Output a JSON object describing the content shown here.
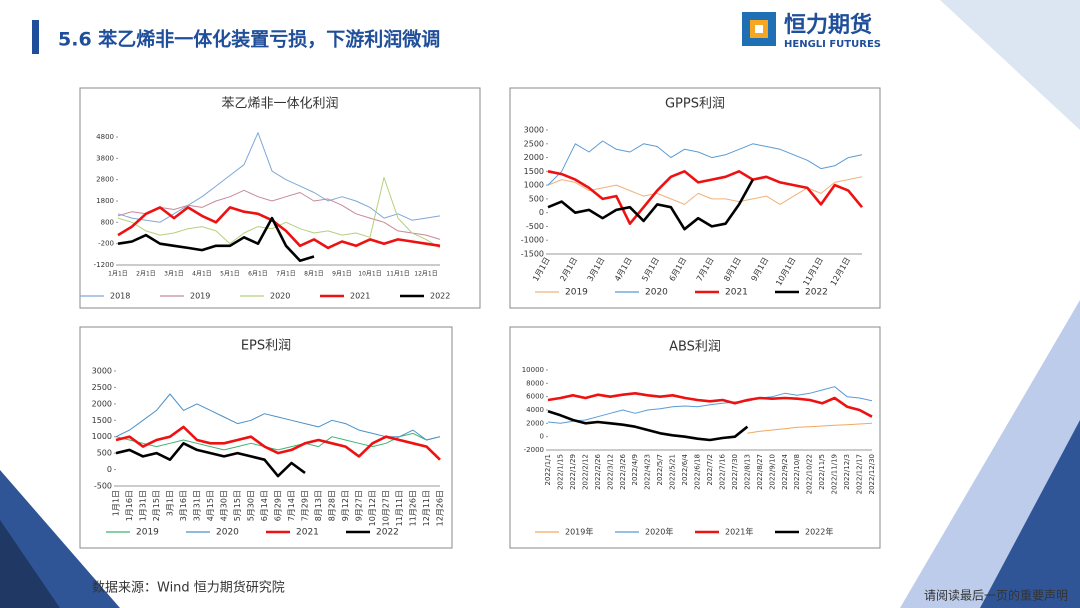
{
  "header": {
    "title": "5.6 苯乙烯非一体化装置亏损，下游利润微调",
    "logo": "恒力期货",
    "logo_en": "HENGLI FUTURES"
  },
  "footer": {
    "source": "数据来源：Wind  恒力期货研究院",
    "notice": "请阅读最后一页的重要声明"
  },
  "chart_data": [
    {
      "type": "line",
      "title": "苯乙烯非一体化利润",
      "categories": [
        "1月1日",
        null,
        "2月1日",
        null,
        "3月1日",
        null,
        "4月1日",
        null,
        "5月1日",
        null,
        "6月1日",
        null,
        "7月1日",
        null,
        "8月1日",
        null,
        "9月1日",
        null,
        "10月1日",
        null,
        "11月1日",
        null,
        "12月1日",
        null
      ],
      "series": [
        {
          "name": "2018",
          "color": "#7fa7d9",
          "values": [
            1200,
            1000,
            900,
            800,
            1200,
            1600,
            2000,
            2500,
            3000,
            3500,
            5000,
            3200,
            2800,
            2500,
            2200,
            1800,
            2000,
            1800,
            1500,
            1000,
            1200,
            900,
            1000,
            1100
          ]
        },
        {
          "name": "2019",
          "color": "#c48a9a",
          "values": [
            1100,
            1300,
            1200,
            1500,
            1400,
            1600,
            1500,
            1800,
            2000,
            2300,
            2000,
            1800,
            2000,
            2200,
            1800,
            1900,
            1600,
            1200,
            1000,
            800,
            400,
            300,
            200,
            0
          ]
        },
        {
          "name": "2020",
          "color": "#b5cf7f",
          "values": [
            1000,
            800,
            400,
            200,
            300,
            500,
            600,
            400,
            -200,
            300,
            600,
            500,
            800,
            500,
            300,
            400,
            200,
            300,
            100,
            2900,
            1000,
            300,
            0,
            -400
          ]
        },
        {
          "name": "2021",
          "color": "#ee1111",
          "values": [
            200,
            600,
            1200,
            1500,
            1000,
            1500,
            1100,
            800,
            1500,
            1300,
            1200,
            900,
            400,
            -300,
            0,
            -400,
            -100,
            -300,
            0,
            -200,
            0,
            -100,
            -200,
            -300
          ]
        },
        {
          "name": "2022",
          "color": "#000000",
          "values": [
            -200,
            -100,
            200,
            -200,
            -300,
            -400,
            -500,
            -300,
            -300,
            100,
            -200,
            1000,
            -300,
            -1000,
            -800,
            null,
            null,
            null,
            null,
            null,
            null,
            null,
            null,
            null
          ]
        }
      ],
      "ylim": [
        -1200,
        4800
      ],
      "yticks": [
        -1200,
        -200,
        800,
        1800,
        2800,
        3800,
        4800
      ],
      "legend": "bottom"
    },
    {
      "type": "line",
      "title": "GPPS利润",
      "categories": [
        "1月1日",
        null,
        "2月1日",
        null,
        "3月1日",
        null,
        "4月1日",
        null,
        "5月1日",
        null,
        "6月1日",
        null,
        "7月1日",
        null,
        "8月1日",
        null,
        "9月1日",
        null,
        "10月1日",
        null,
        "11月1日",
        null,
        "12月1日",
        null
      ],
      "series": [
        {
          "name": "2019",
          "color": "#f0b27a",
          "values": [
            1000,
            1200,
            1100,
            800,
            900,
            1000,
            800,
            600,
            700,
            500,
            300,
            700,
            500,
            500,
            400,
            500,
            600,
            300,
            600,
            900,
            700,
            1100,
            1200,
            1300
          ]
        },
        {
          "name": "2020",
          "color": "#5b9bd5",
          "values": [
            1000,
            1500,
            2500,
            2200,
            2600,
            2300,
            2200,
            2500,
            2400,
            2000,
            2300,
            2200,
            2000,
            2100,
            2300,
            2500,
            2400,
            2300,
            2100,
            1900,
            1600,
            1700,
            2000,
            2100
          ]
        },
        {
          "name": "2021",
          "color": "#ee1111",
          "values": [
            1500,
            1400,
            1200,
            900,
            500,
            600,
            -400,
            200,
            800,
            1300,
            1500,
            1100,
            1200,
            1300,
            1500,
            1200,
            1300,
            1100,
            1000,
            900,
            300,
            1000,
            800,
            200
          ]
        },
        {
          "name": "2022",
          "color": "#000000",
          "values": [
            200,
            400,
            0,
            100,
            -200,
            100,
            200,
            -300,
            300,
            200,
            -600,
            -200,
            -500,
            -400,
            300,
            1200,
            null,
            null,
            null,
            null,
            null,
            null,
            null,
            null
          ]
        }
      ],
      "ylim": [
        -1500,
        3000
      ],
      "yticks": [
        -1500,
        -1000,
        -500,
        0,
        500,
        1000,
        1500,
        2000,
        2500,
        3000
      ],
      "legend": "bottom"
    },
    {
      "type": "line",
      "title": "EPS利润",
      "categories": [
        "1月1日",
        "1月16日",
        "1月31日",
        "2月15日",
        "3月1日",
        "3月16日",
        "3月31日",
        "4月15日",
        "4月30日",
        "5月15日",
        "5月30日",
        "6月14日",
        "6月29日",
        "7月14日",
        "7月29日",
        "8月13日",
        "8月28日",
        "9月12日",
        "9月27日",
        "10月12日",
        "10月27日",
        "11月11日",
        "11月26日",
        "12月11日",
        "12月26日"
      ],
      "series": [
        {
          "name": "2019",
          "color": "#3cb371",
          "values": [
            1000,
            900,
            800,
            700,
            800,
            900,
            800,
            700,
            600,
            700,
            800,
            700,
            600,
            700,
            800,
            700,
            1000,
            900,
            800,
            700,
            800,
            1000,
            1100,
            900,
            1000
          ]
        },
        {
          "name": "2020",
          "color": "#4a90c8",
          "values": [
            1000,
            1200,
            1500,
            1800,
            2300,
            1800,
            2000,
            1800,
            1600,
            1400,
            1500,
            1700,
            1600,
            1500,
            1400,
            1300,
            1500,
            1400,
            1200,
            1100,
            1000,
            1000,
            1200,
            900,
            1000
          ]
        },
        {
          "name": "2021",
          "color": "#ee1111",
          "values": [
            900,
            1000,
            700,
            900,
            1000,
            1300,
            900,
            800,
            800,
            900,
            1000,
            700,
            500,
            600,
            800,
            900,
            800,
            700,
            400,
            800,
            1000,
            900,
            800,
            700,
            300
          ]
        },
        {
          "name": "2022",
          "color": "#000000",
          "values": [
            500,
            600,
            400,
            500,
            300,
            800,
            600,
            500,
            400,
            500,
            400,
            300,
            -200,
            200,
            -100,
            null,
            null,
            null,
            null,
            null,
            null,
            null,
            null,
            null,
            null
          ]
        }
      ],
      "ylim": [
        -500,
        3000
      ],
      "yticks": [
        -500,
        0,
        500,
        1000,
        1500,
        2000,
        2500,
        3000
      ],
      "legend": "bottom"
    },
    {
      "type": "line",
      "title": "ABS利润",
      "categories": [
        "2022/1/1",
        "2022/1/15",
        "2022/1/29",
        "2022/2/12",
        "2022/2/26",
        "2022/3/12",
        "2022/3/26",
        "2022/4/9",
        "2022/4/23",
        "2022/5/7",
        "2022/5/21",
        "2022/6/4",
        "2022/6/18",
        "2022/7/2",
        "2022/7/16",
        "2022/7/30",
        "2022/8/13",
        "2022/8/27",
        "2022/9/10",
        "2022/9/24",
        "2022/10/8",
        "2022/10/22",
        "2022/11/5",
        "2022/11/19",
        "2022/12/3",
        "2022/12/17",
        "2022/12/30"
      ],
      "series": [
        {
          "name": "2019年",
          "color": "#f0a860",
          "values": [
            null,
            null,
            null,
            null,
            null,
            null,
            null,
            null,
            null,
            null,
            null,
            null,
            null,
            null,
            null,
            null,
            500,
            800,
            1000,
            1200,
            1400,
            1500,
            1600,
            1700,
            1800,
            1900,
            2000
          ]
        },
        {
          "name": "2020年",
          "color": "#5b9bd5",
          "values": [
            2200,
            2000,
            2300,
            2500,
            3000,
            3500,
            4000,
            3500,
            4000,
            4200,
            4500,
            4600,
            4500,
            4800,
            5000,
            5200,
            5300,
            5800,
            6000,
            6500,
            6200,
            6500,
            7000,
            7500,
            6000,
            5800,
            5400
          ]
        },
        {
          "name": "2021年",
          "color": "#ee1111",
          "values": [
            5500,
            5800,
            6200,
            5800,
            6300,
            6000,
            6300,
            6500,
            6200,
            6000,
            6200,
            5800,
            5500,
            5300,
            5500,
            5000,
            5500,
            5800,
            5700,
            5800,
            5700,
            5500,
            5000,
            5800,
            4500,
            4000,
            3000
          ]
        },
        {
          "name": "2022年",
          "color": "#000000",
          "values": [
            3800,
            3200,
            2500,
            2000,
            2200,
            2000,
            1800,
            1500,
            1000,
            500,
            200,
            0,
            -300,
            -500,
            -200,
            0,
            1500,
            null,
            null,
            null,
            null,
            null,
            null,
            null,
            null,
            null,
            null
          ]
        }
      ],
      "ylim": [
        -2000,
        10000
      ],
      "yticks": [
        -2000,
        0,
        2000,
        4000,
        6000,
        8000,
        10000
      ],
      "legend": "bottom"
    }
  ]
}
